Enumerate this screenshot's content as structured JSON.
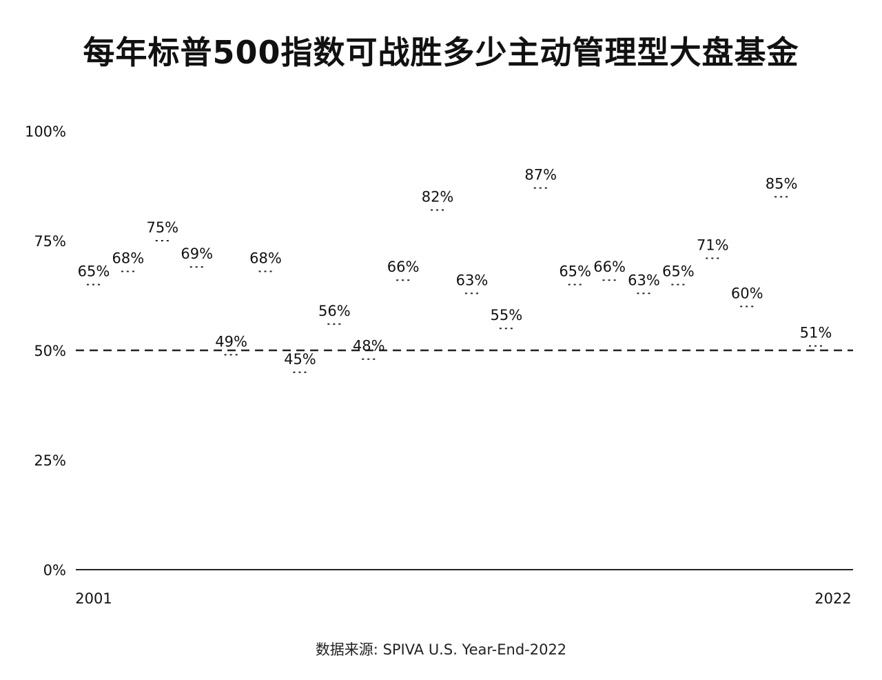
{
  "page": {
    "title": "每年标普500指数可战胜多少主动管理型大盘基金",
    "source": "数据来源: SPIVA U.S. Year-End-2022"
  },
  "chart_data": {
    "type": "scatter",
    "title": "每年标普500指数可战胜多少主动管理型大盘基金",
    "x": [
      2001,
      2002,
      2003,
      2004,
      2005,
      2006,
      2007,
      2008,
      2009,
      2010,
      2011,
      2012,
      2013,
      2014,
      2015,
      2016,
      2017,
      2018,
      2019,
      2020,
      2021,
      2022
    ],
    "values": [
      65,
      68,
      75,
      69,
      49,
      68,
      45,
      56,
      48,
      66,
      82,
      63,
      55,
      87,
      65,
      66,
      63,
      65,
      71,
      60,
      85,
      51
    ],
    "value_labels": [
      "65%",
      "68%",
      "75%",
      "69%",
      "49%",
      "68%",
      "45%",
      "56%",
      "48%",
      "66%",
      "82%",
      "63%",
      "55%",
      "87%",
      "65%",
      "66%",
      "63%",
      "65%",
      "71%",
      "60%",
      "85%",
      "51%"
    ],
    "x_tick_labels": [
      "2001",
      "2022"
    ],
    "y_ticks": [
      0,
      25,
      50,
      75,
      100
    ],
    "y_tick_labels": [
      "0%",
      "25%",
      "50%",
      "75%",
      "100%"
    ],
    "ylim": [
      0,
      100
    ],
    "reference_line": {
      "value": 50,
      "style": "dashed"
    },
    "colors": {
      "text": "#111111",
      "axis": "#222222",
      "reference": "#222222"
    }
  }
}
